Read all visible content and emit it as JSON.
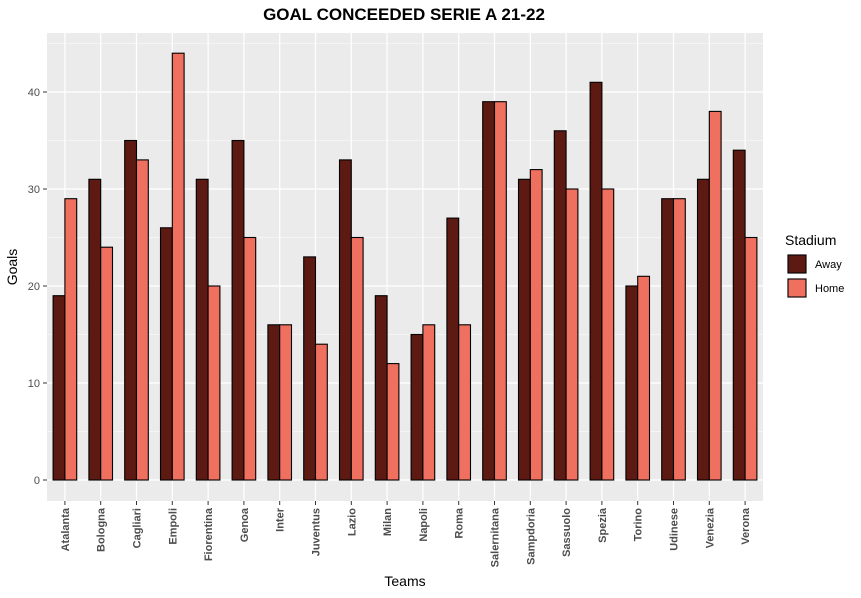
{
  "chart_data": {
    "type": "bar",
    "title": "GOAL CONCEEDED SERIE A 21-22",
    "xlabel": "Teams",
    "ylabel": "Goals",
    "ylim": [
      0,
      46
    ],
    "yticks": [
      0,
      10,
      20,
      30,
      40
    ],
    "grid": true,
    "legend": {
      "title": "Stadium",
      "placement": "right"
    },
    "categories": [
      "Atalanta",
      "Bologna",
      "Cagliari",
      "Empoli",
      "Fiorentina",
      "Genoa",
      "Inter",
      "Juventus",
      "Lazio",
      "Milan",
      "Napoli",
      "Roma",
      "Salernitana",
      "Sampdoria",
      "Sassuolo",
      "Spezia",
      "Torino",
      "Udinese",
      "Venezia",
      "Verona"
    ],
    "series": [
      {
        "name": "Away",
        "color": "#5c1a12",
        "values": [
          19,
          31,
          35,
          26,
          31,
          35,
          16,
          23,
          33,
          19,
          15,
          27,
          39,
          31,
          36,
          41,
          20,
          29,
          31,
          34
        ]
      },
      {
        "name": "Home",
        "color": "#f07060",
        "values": [
          29,
          24,
          33,
          44,
          20,
          25,
          16,
          14,
          25,
          12,
          16,
          16,
          39,
          32,
          30,
          30,
          21,
          29,
          38,
          25
        ]
      }
    ],
    "colors": {
      "panel_background": "#ebebeb",
      "grid": "#ffffff",
      "bar_outline": "#000000"
    }
  }
}
